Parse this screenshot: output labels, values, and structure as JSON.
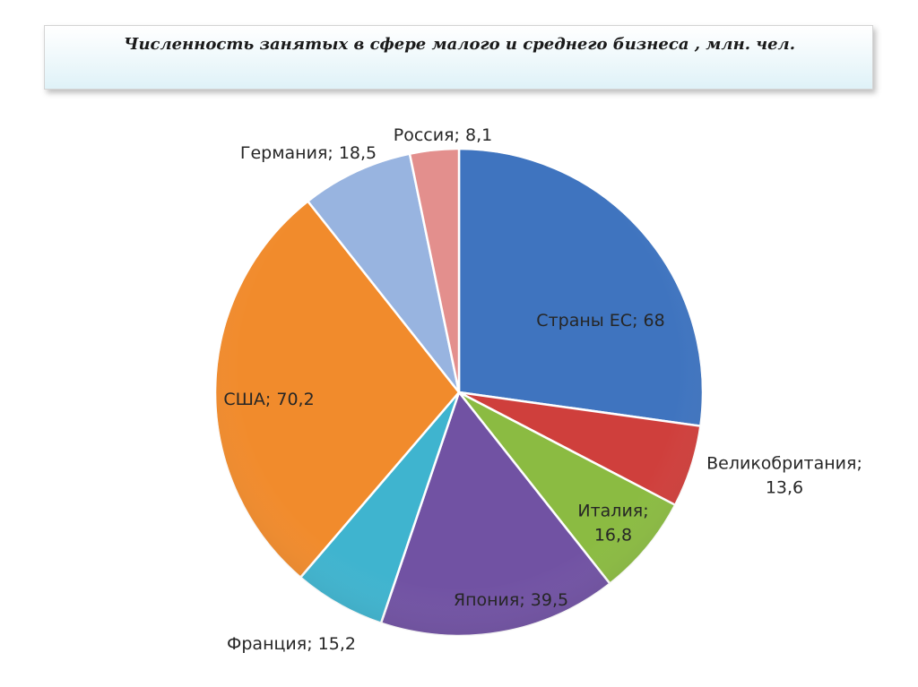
{
  "chart_data": {
    "type": "pie",
    "title": "Численность занятых в сфере малого и среднего бизнеса , млн. чел.",
    "series": [
      {
        "values": [
          {
            "category": "Страны ЕС",
            "value": 68,
            "label": [
              "Страны ЕС; 68"
            ],
            "color": "#3f74bf"
          },
          {
            "category": "Великобритания",
            "value": 13.6,
            "label": [
              "Великобритания;",
              "13,6"
            ],
            "color": "#cf3f3c"
          },
          {
            "category": "Италия",
            "value": 16.8,
            "label": [
              "Италия;",
              "16,8"
            ],
            "color": "#8bbb42"
          },
          {
            "category": "Япония",
            "value": 39.5,
            "label": [
              "Япония; 39,5"
            ],
            "color": "#7152a3"
          },
          {
            "category": "Франция",
            "value": 15.2,
            "label": [
              "Франция; 15,2"
            ],
            "color": "#3fb4cf"
          },
          {
            "category": "США",
            "value": 70.2,
            "label": [
              "США; 70,2"
            ],
            "color": "#f18b2c"
          },
          {
            "category": "Германия",
            "value": 18.5,
            "label": [
              "Германия; 18,5"
            ],
            "color": "#98b4e0"
          },
          {
            "category": "Россия",
            "value": 8.1,
            "label": [
              "Россия; 8,1"
            ],
            "color": "#e38f8d"
          }
        ]
      }
    ],
    "legend": "none",
    "start_angle_deg": 0,
    "direction": "clockwise"
  }
}
